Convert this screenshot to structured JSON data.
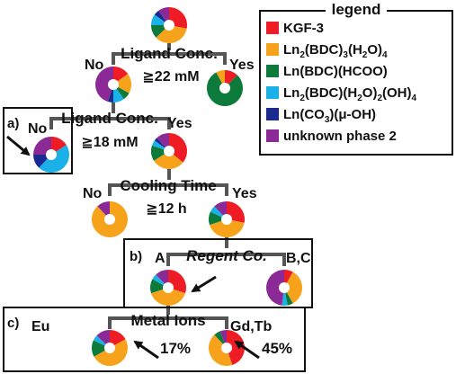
{
  "legend": {
    "title": "legend",
    "items": [
      {
        "key": "kgf3",
        "color": "#ee1c25",
        "parts": [
          [
            "KGF-3",
            0
          ]
        ]
      },
      {
        "key": "ln2bdc3",
        "color": "#f7a21b",
        "parts": [
          [
            "Ln",
            0
          ],
          [
            "2",
            1
          ],
          [
            "(BDC)",
            0
          ],
          [
            "3",
            1
          ],
          [
            "(H",
            0
          ],
          [
            "2",
            1
          ],
          [
            "O)",
            0
          ],
          [
            "4",
            1
          ]
        ]
      },
      {
        "key": "lnbdchcoo",
        "color": "#0b7a3a",
        "parts": [
          [
            "Ln(BDC)(HCOO)",
            0
          ]
        ]
      },
      {
        "key": "ln2bdch2ooh",
        "color": "#1ab0e8",
        "parts": [
          [
            "Ln",
            0
          ],
          [
            "2",
            1
          ],
          [
            "(BDC)(H",
            0
          ],
          [
            "2",
            1
          ],
          [
            "O)",
            0
          ],
          [
            "2",
            1
          ],
          [
            "(OH)",
            0
          ],
          [
            "4",
            1
          ]
        ]
      },
      {
        "key": "lnco3",
        "color": "#1b2a8f",
        "parts": [
          [
            "Ln(CO",
            0
          ],
          [
            "3",
            1
          ],
          [
            ")(μ-OH)",
            0
          ]
        ]
      },
      {
        "key": "unknown2",
        "color": "#8b2a96",
        "parts": [
          [
            "unknown phase 2",
            0
          ]
        ]
      }
    ]
  },
  "nodes": {
    "ligand1": {
      "title": "Ligand Conc.",
      "condition": "≧22 mM",
      "no": "No",
      "yes": "Yes"
    },
    "ligand2": {
      "tag": "a)",
      "title": "Ligand Conc.",
      "condition": "≧18 mM",
      "no": "No",
      "yes": "Yes"
    },
    "cooling": {
      "title": "Cooling Time",
      "condition": "≧12 h",
      "no": "No",
      "yes": "Yes"
    },
    "reagent": {
      "tag": "b)",
      "title": "Regent Co.",
      "left": "A",
      "right": "B,C"
    },
    "metal": {
      "tag": "c)",
      "title": "Metal Ions",
      "left": "Eu",
      "right": "Gd,Tb",
      "left_pct": "17%",
      "right_pct": "45%"
    }
  },
  "pies": {
    "top": [
      [
        "ee1c25",
        0.28
      ],
      [
        "f7a21b",
        0.35
      ],
      [
        "0b7a3a",
        0.12
      ],
      [
        "1ab0e8",
        0.1
      ],
      [
        "1b2a8f",
        0.05
      ],
      [
        "8b2a96",
        0.1
      ]
    ],
    "l1_no": [
      [
        "ee1c25",
        0.15
      ],
      [
        "f7a21b",
        0.18
      ],
      [
        "0b7a3a",
        0.07
      ],
      [
        "1ab0e8",
        0.1
      ],
      [
        "1b2a8f",
        0.05
      ],
      [
        "8b2a96",
        0.45
      ]
    ],
    "l1_yes": [
      [
        "ee1c25",
        0.12
      ],
      [
        "0b7a3a",
        0.8
      ],
      [
        "f7a21b",
        0.08
      ]
    ],
    "l2_no": [
      [
        "ee1c25",
        0.16
      ],
      [
        "1ab0e8",
        0.46
      ],
      [
        "1b2a8f",
        0.13
      ],
      [
        "8b2a96",
        0.25
      ]
    ],
    "l2_yes": [
      [
        "ee1c25",
        0.36
      ],
      [
        "f7a21b",
        0.3
      ],
      [
        "0b7a3a",
        0.14
      ],
      [
        "1ab0e8",
        0.05
      ],
      [
        "1b2a8f",
        0.03
      ],
      [
        "8b2a96",
        0.12
      ]
    ],
    "ct_no": [
      [
        "f7a21b",
        0.88
      ],
      [
        "8b2a96",
        0.12
      ]
    ],
    "ct_yes": [
      [
        "ee1c25",
        0.28
      ],
      [
        "f7a21b",
        0.42
      ],
      [
        "0b7a3a",
        0.12
      ],
      [
        "1ab0e8",
        0.06
      ],
      [
        "8b2a96",
        0.12
      ]
    ],
    "rc_a": [
      [
        "ee1c25",
        0.3
      ],
      [
        "f7a21b",
        0.4
      ],
      [
        "0b7a3a",
        0.13
      ],
      [
        "1ab0e8",
        0.05
      ],
      [
        "8b2a96",
        0.12
      ]
    ],
    "rc_bc": [
      [
        "ee1c25",
        0.08
      ],
      [
        "f7a21b",
        0.34
      ],
      [
        "0b7a3a",
        0.05
      ],
      [
        "1ab0e8",
        0.05
      ],
      [
        "8b2a96",
        0.48
      ]
    ],
    "mi_eu": [
      [
        "ee1c25",
        0.17
      ],
      [
        "f7a21b",
        0.5
      ],
      [
        "0b7a3a",
        0.15
      ],
      [
        "1ab0e8",
        0.05
      ],
      [
        "8b2a96",
        0.13
      ]
    ],
    "mi_gd": [
      [
        "ee1c25",
        0.45
      ],
      [
        "f7a21b",
        0.43
      ],
      [
        "0b7a3a",
        0.06
      ],
      [
        "8b2a96",
        0.06
      ]
    ]
  }
}
